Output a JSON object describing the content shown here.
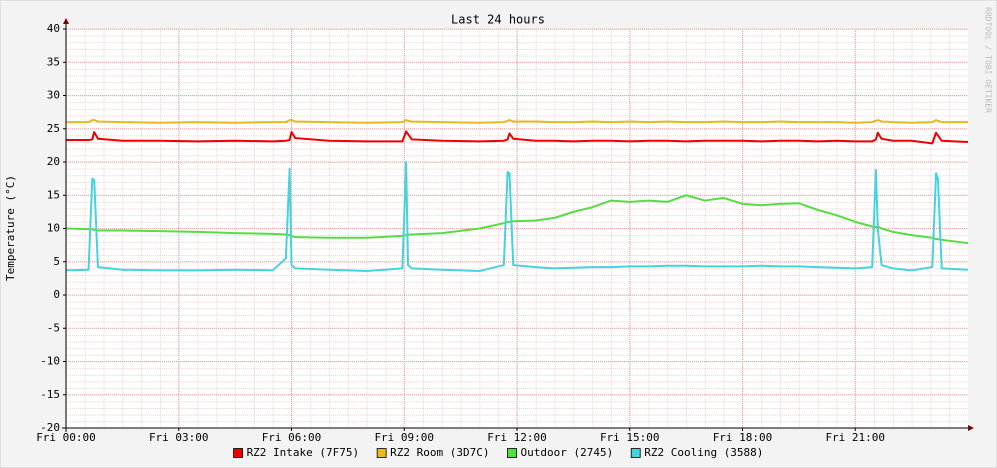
{
  "chart_data": {
    "type": "line",
    "title": "Last 24 hours",
    "y_label": "Temperature (°C)",
    "watermark": "RRDTOOL / TOBI OETIKER",
    "x": [
      0,
      0.6,
      0.7,
      0.75,
      0.85,
      1.5,
      2.5,
      3.5,
      4.5,
      5.5,
      5.85,
      5.95,
      6.0,
      6.1,
      7,
      8,
      8.95,
      9.05,
      9.1,
      9.2,
      10,
      11,
      11.65,
      11.75,
      11.8,
      11.9,
      12.5,
      13,
      13.5,
      14,
      14.5,
      15,
      15.5,
      16,
      16.5,
      17,
      17.5,
      18,
      18.5,
      19,
      19.5,
      20,
      20.5,
      21,
      21.45,
      21.55,
      21.6,
      21.7,
      22,
      22.5,
      23.05,
      23.15,
      23.2,
      23.3,
      24
    ],
    "xlim": [
      0,
      24
    ],
    "xticks": [
      {
        "value": 0,
        "label": "Fri 00:00"
      },
      {
        "value": 3,
        "label": "Fri 03:00"
      },
      {
        "value": 6,
        "label": "Fri 06:00"
      },
      {
        "value": 9,
        "label": "Fri 09:00"
      },
      {
        "value": 12,
        "label": "Fri 12:00"
      },
      {
        "value": 15,
        "label": "Fri 15:00"
      },
      {
        "value": 18,
        "label": "Fri 18:00"
      },
      {
        "value": 21,
        "label": "Fri 21:00"
      }
    ],
    "ylim": [
      -20,
      40
    ],
    "yticks": [
      -20,
      -15,
      -10,
      -5,
      0,
      5,
      10,
      15,
      20,
      25,
      30,
      35,
      40
    ],
    "grid": true,
    "series": [
      {
        "name": "RZ2 Intake (7F75)",
        "color": "#ee0000",
        "values": [
          23.3,
          23.3,
          23.4,
          24.5,
          23.5,
          23.2,
          23.2,
          23.1,
          23.2,
          23.1,
          23.2,
          23.3,
          24.5,
          23.6,
          23.2,
          23.1,
          23.1,
          24.6,
          24.2,
          23.4,
          23.2,
          23.1,
          23.2,
          23.4,
          24.3,
          23.5,
          23.2,
          23.2,
          23.1,
          23.2,
          23.2,
          23.1,
          23.2,
          23.2,
          23.1,
          23.2,
          23.2,
          23.2,
          23.1,
          23.2,
          23.2,
          23.1,
          23.2,
          23.1,
          23.1,
          23.4,
          24.4,
          23.5,
          23.2,
          23.2,
          22.8,
          24.4,
          24.0,
          23.2,
          23.0
        ]
      },
      {
        "name": "RZ2 Room (3D7C)",
        "color": "#e8b820",
        "values": [
          26.0,
          26.0,
          26.3,
          26.3,
          26.1,
          26.0,
          25.9,
          26.0,
          25.9,
          26.0,
          26.0,
          26.3,
          26.3,
          26.1,
          26.0,
          25.9,
          26.0,
          26.3,
          26.2,
          26.1,
          26.0,
          25.9,
          26.0,
          26.2,
          26.3,
          26.1,
          26.1,
          26.0,
          26.0,
          26.1,
          26.0,
          26.1,
          26.0,
          26.1,
          26.0,
          26.0,
          26.1,
          26.0,
          26.0,
          26.1,
          26.0,
          26.0,
          26.0,
          25.9,
          26.0,
          26.2,
          26.3,
          26.1,
          26.0,
          25.9,
          26.0,
          26.3,
          26.2,
          26.0,
          26.0
        ]
      },
      {
        "name": "Outdoor (2745)",
        "color": "#55dd44",
        "values": [
          10.0,
          9.9,
          9.9,
          9.8,
          9.7,
          9.7,
          9.6,
          9.5,
          9.3,
          9.2,
          9.1,
          9.0,
          8.9,
          8.7,
          8.6,
          8.6,
          8.9,
          9.0,
          9.1,
          9.1,
          9.3,
          10.0,
          10.8,
          11.0,
          11.0,
          11.1,
          11.2,
          11.6,
          12.5,
          13.2,
          14.2,
          14.0,
          14.2,
          14.0,
          15.0,
          14.2,
          14.6,
          13.7,
          13.5,
          13.7,
          13.8,
          12.8,
          12.0,
          11.0,
          10.3,
          10.2,
          10.3,
          10.0,
          9.5,
          9.0,
          8.6,
          8.4,
          8.4,
          8.3,
          7.8
        ]
      },
      {
        "name": "RZ2 Cooling (3588)",
        "color": "#44d4dd",
        "values": [
          3.7,
          3.8,
          17.5,
          17.3,
          4.2,
          3.8,
          3.7,
          3.7,
          3.8,
          3.7,
          5.5,
          19,
          4.5,
          4.0,
          3.8,
          3.6,
          4.0,
          20,
          4.5,
          4.0,
          3.8,
          3.6,
          4.5,
          18.5,
          18.3,
          4.5,
          4.2,
          4.0,
          4.1,
          4.2,
          4.2,
          4.3,
          4.3,
          4.4,
          4.4,
          4.3,
          4.3,
          4.3,
          4.4,
          4.3,
          4.3,
          4.2,
          4.1,
          4.0,
          4.2,
          18.8,
          10,
          4.5,
          4.0,
          3.7,
          4.2,
          18.3,
          17.5,
          4.0,
          3.8
        ]
      }
    ]
  }
}
